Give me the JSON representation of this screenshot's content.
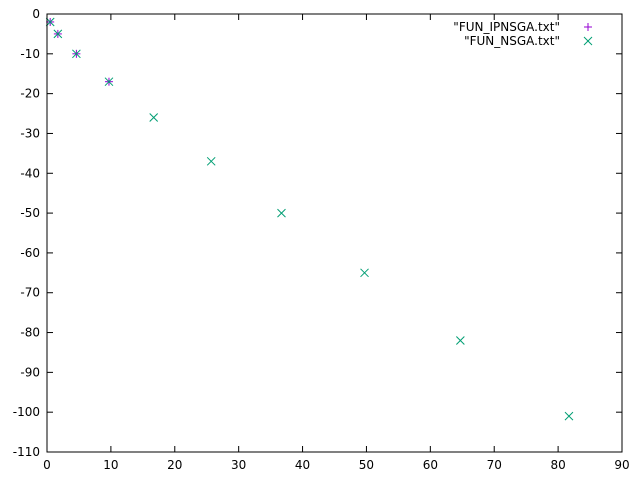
{
  "chart_data": {
    "type": "scatter",
    "title": "",
    "xlabel": "",
    "ylabel": "",
    "xlim": [
      0,
      90
    ],
    "ylim": [
      -110,
      0
    ],
    "xticks": [
      0,
      10,
      20,
      30,
      40,
      50,
      60,
      70,
      80,
      90
    ],
    "yticks": [
      0,
      -10,
      -20,
      -30,
      -40,
      -50,
      -60,
      -70,
      -80,
      -90,
      -100,
      -110
    ],
    "grid": false,
    "legend_position": "top-right",
    "series": [
      {
        "name": "\"FUN_IPNSGA.txt\"",
        "marker": "plus",
        "color": "#9400d3",
        "points": [
          [
            0.5,
            -2
          ],
          [
            1.7,
            -5
          ],
          [
            4.6,
            -10
          ],
          [
            9.7,
            -17
          ]
        ]
      },
      {
        "name": "\"FUN_NSGA.txt\"",
        "marker": "cross",
        "color": "#009e73",
        "points": [
          [
            0.5,
            -2
          ],
          [
            1.7,
            -5
          ],
          [
            4.6,
            -10
          ],
          [
            9.7,
            -17
          ],
          [
            16.7,
            -26
          ],
          [
            25.7,
            -37
          ],
          [
            36.7,
            -50
          ],
          [
            49.7,
            -65
          ],
          [
            64.7,
            -82
          ],
          [
            81.7,
            -101
          ]
        ]
      }
    ]
  }
}
